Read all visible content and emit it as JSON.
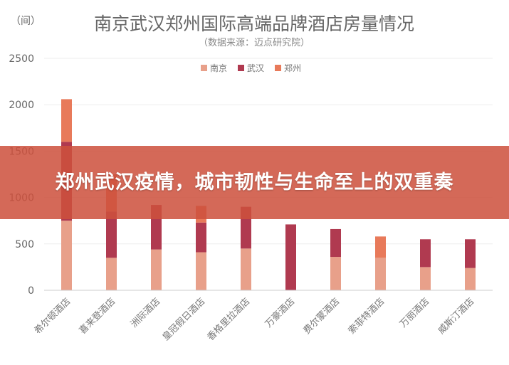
{
  "chart_data": {
    "type": "bar",
    "title": "南京武汉郑州国际高端品牌酒店房量情况",
    "subtitle": "（数据来源：迈点研究院）",
    "ylabel": "（间）",
    "ylim": [
      0,
      2500
    ],
    "yticks": [
      0,
      500,
      1000,
      1500,
      2000,
      2500
    ],
    "categories": [
      "希尔顿酒店",
      "喜来登酒店",
      "洲际酒店",
      "皇冠假日酒店",
      "香格里拉酒店",
      "万豪酒店",
      "费尔蒙酒店",
      "索菲特酒店",
      "万丽酒店",
      "威斯汀酒店"
    ],
    "series": [
      {
        "name": "南京",
        "color": "#e8a08a",
        "values": [
          750,
          350,
          440,
          410,
          450,
          0,
          360,
          350,
          250,
          240
        ]
      },
      {
        "name": "武汉",
        "color": "#b03a50",
        "values": [
          850,
          500,
          480,
          320,
          450,
          710,
          300,
          0,
          300,
          310
        ]
      },
      {
        "name": "郑州",
        "color": "#e87a5a",
        "values": [
          460,
          400,
          0,
          180,
          0,
          0,
          0,
          230,
          0,
          0
        ]
      }
    ],
    "legend_position": "top-center"
  },
  "banner": {
    "text": "郑州武汉疫情，城市韧性与生命至上的双重奏"
  }
}
